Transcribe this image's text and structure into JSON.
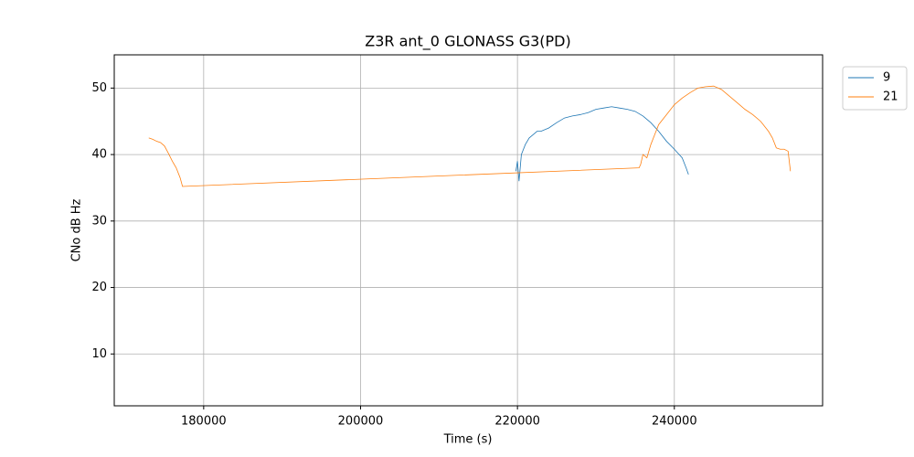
{
  "chart_data": {
    "type": "line",
    "title": "Z3R ant_0 GLONASS G3(PD)",
    "xlabel": "Time (s)",
    "ylabel": "CNo dB Hz",
    "xlim": [
      168600,
      258900
    ],
    "ylim": [
      2.2,
      55
    ],
    "xticks": [
      180000,
      200000,
      220000,
      240000
    ],
    "yticks": [
      10,
      20,
      30,
      40,
      50
    ],
    "grid": true,
    "legend": "upper right outside",
    "series": [
      {
        "name": "9",
        "color": "#1f77b4",
        "x": [
          219800,
          220000,
          220200,
          220500,
          221000,
          221500,
          222000,
          222500,
          223000,
          224000,
          225000,
          226000,
          227000,
          228000,
          229000,
          230000,
          231000,
          232000,
          233000,
          234000,
          235000,
          236000,
          237000,
          238000,
          239000,
          240000,
          241000,
          241500,
          241800
        ],
        "values": [
          37.5,
          39,
          36,
          40,
          41.5,
          42.5,
          43,
          43.5,
          43.5,
          44,
          44.8,
          45.5,
          45.8,
          46,
          46.3,
          46.8,
          47,
          47.2,
          47,
          46.8,
          46.5,
          45.8,
          44.8,
          43.5,
          42,
          40.8,
          39.5,
          38,
          37
        ]
      },
      {
        "name": "21",
        "color": "#ff7f0e",
        "x": [
          173000,
          173500,
          174000,
          174500,
          175000,
          175500,
          176000,
          176500,
          177000,
          177300,
          235500,
          235700,
          236000,
          236500,
          237000,
          237500,
          238000,
          239000,
          240000,
          241000,
          242000,
          243000,
          244000,
          245000,
          246000,
          247000,
          248000,
          249000,
          250000,
          251000,
          252000,
          252500,
          253000,
          253500,
          254000,
          254500,
          254800
        ],
        "values": [
          42.5,
          42.3,
          42,
          41.8,
          41.3,
          40.2,
          39,
          38,
          36.5,
          35.2,
          38,
          38.5,
          40,
          39.5,
          41.5,
          43,
          44.5,
          46,
          47.5,
          48.5,
          49.3,
          50,
          50.2,
          50.3,
          49.8,
          48.8,
          47.8,
          46.8,
          46,
          45,
          43.5,
          42.5,
          41,
          40.8,
          40.8,
          40.5,
          37.5
        ]
      }
    ]
  }
}
